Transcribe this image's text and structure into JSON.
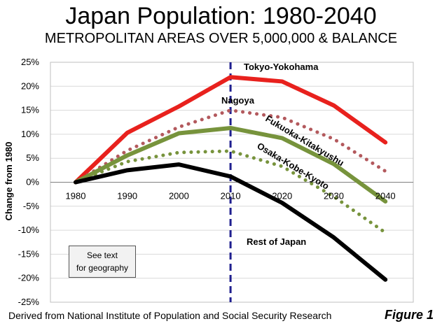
{
  "header": {
    "title": "Japan Population: 1980-2040",
    "subtitle": "METROPOLITAN AREAS OVER 5,000,000 & BALANCE"
  },
  "note": {
    "line1": "See text",
    "line2": "for geography"
  },
  "footer": {
    "source": "Derived from National Institute of Population and Social Security Research",
    "figure": "Figure 1"
  },
  "chart_data": {
    "type": "line",
    "title": "Japan Population: 1980-2040",
    "subtitle": "METROPOLITAN AREAS OVER 5,000,000 & BALANCE",
    "xlabel": "",
    "ylabel": "Change from 1980",
    "categories": [
      "1980",
      "1990",
      "2000",
      "2010",
      "2020",
      "2030",
      "2040"
    ],
    "ylim": [
      -25,
      25
    ],
    "ytick_step": 5,
    "ytick_labels": [
      "25%",
      "20%",
      "15%",
      "10%",
      "5%",
      "0%",
      "-5%",
      "-10%",
      "-15%",
      "-20%",
      "-25%"
    ],
    "marker_year": "2010",
    "series": [
      {
        "name": "Tokyo-Yokohama",
        "values": [
          0,
          10.3,
          15.8,
          21.9,
          21.0,
          16.0,
          8.3
        ],
        "color": "#e8211d",
        "style": "solid"
      },
      {
        "name": "Nagoya",
        "values": [
          0,
          6.6,
          11.5,
          15.0,
          13.5,
          9.0,
          2.3
        ],
        "color": "#b3595d",
        "style": "dotted"
      },
      {
        "name": "Fukuoka-Kitakyushu",
        "values": [
          0,
          5.6,
          10.2,
          11.3,
          9.2,
          3.8,
          -4.0
        ],
        "color": "#77933c",
        "style": "solid"
      },
      {
        "name": "Osaka-Kobe-Kyoto",
        "values": [
          0,
          4.3,
          6.2,
          6.5,
          3.3,
          -3.0,
          -10.5
        ],
        "color": "#77933c",
        "style": "dotted"
      },
      {
        "name": "Rest of Japan",
        "values": [
          0,
          2.5,
          3.7,
          1.2,
          -4.3,
          -11.5,
          -20.3
        ],
        "color": "#000000",
        "style": "solid"
      }
    ]
  }
}
